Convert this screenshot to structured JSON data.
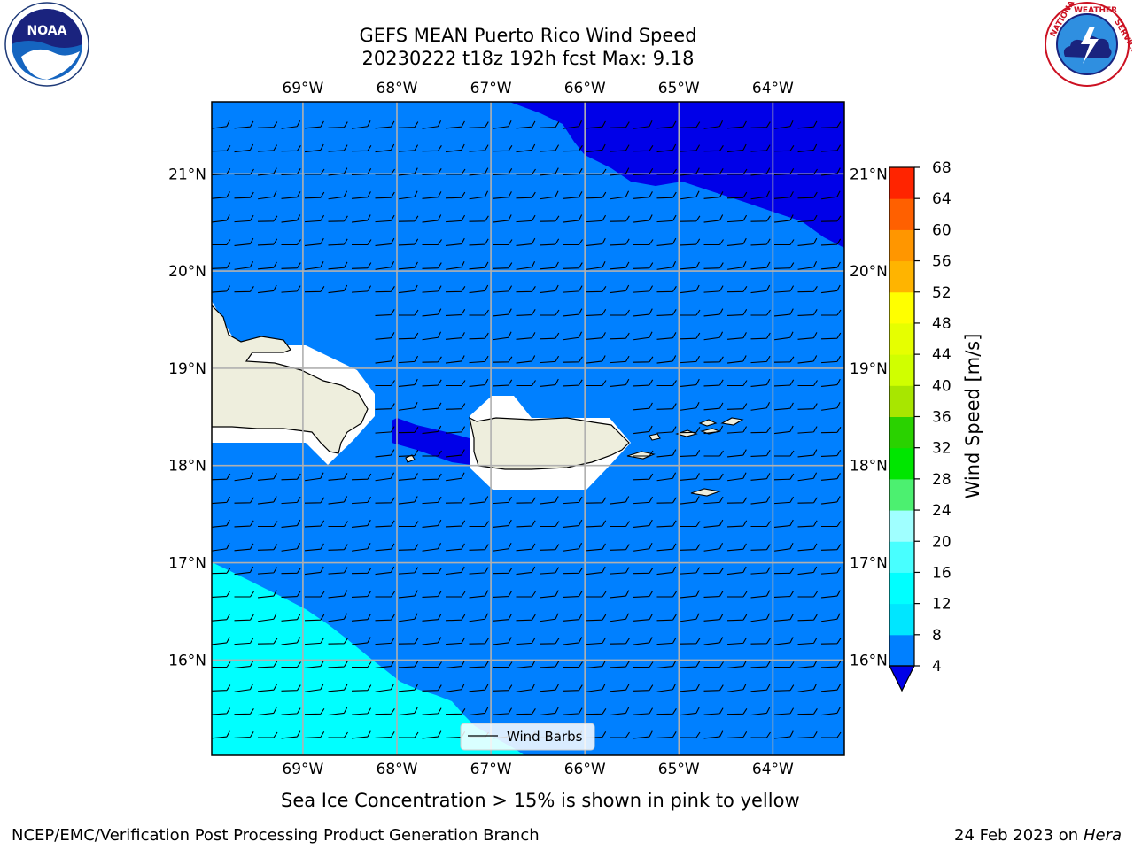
{
  "header": {
    "title_line1": "GEFS MEAN Puerto Rico Wind Speed",
    "title_line2": "20230222 t18z 192h fcst   Max: 9.18"
  },
  "logos": {
    "noaa_text": "NOAA",
    "noaa_ring_text": "NATIONAL OCEANIC AND ATMOSPHERIC ADMINISTRATION · U.S. DEPARTMENT OF COMMERCE",
    "nws_ring_text": "NATIONAL WEATHER SERVICE"
  },
  "map": {
    "lon_labels": [
      "69°W",
      "68°W",
      "67°W",
      "66°W",
      "65°W",
      "64°W"
    ],
    "lat_labels": [
      "21°N",
      "20°N",
      "19°N",
      "18°N",
      "17°N",
      "16°N"
    ],
    "lon_values": [
      -69,
      -68,
      -67,
      -66,
      -65,
      -64
    ],
    "lat_values": [
      21,
      20,
      19,
      18,
      17,
      16
    ],
    "extent": {
      "lon_min": -69.97,
      "lon_max": -63.24,
      "lat_min": 15.02,
      "lat_max": 21.74
    },
    "legend_label": "Wind Barbs",
    "colors": {
      "sea": "#0080ff",
      "strong": "#0000e8",
      "weak": "#00ffff",
      "land": "#eeeedd"
    }
  },
  "colorbar": {
    "title": "Wind Speed [m/s]",
    "levels": [
      "4",
      "8",
      "12",
      "16",
      "20",
      "24",
      "28",
      "32",
      "36",
      "40",
      "44",
      "48",
      "52",
      "56",
      "60",
      "64",
      "68"
    ],
    "colors": [
      "#0080ff",
      "#00e6ff",
      "#00ffff",
      "#48ffff",
      "#a0ffff",
      "#4cf070",
      "#00e600",
      "#2ad200",
      "#a8e600",
      "#d0ff00",
      "#e6ff00",
      "#ffff00",
      "#ffb400",
      "#ff9600",
      "#ff6000",
      "#ff2400"
    ],
    "extend_color": "#0000e8"
  },
  "footer": {
    "note": "Sea Ice Concentration > 15% is shown in pink to yellow",
    "branch": "NCEP/EMC/Verification Post Processing Product Generation Branch",
    "date": "24 Feb 2023 on",
    "machine": "Hera"
  }
}
